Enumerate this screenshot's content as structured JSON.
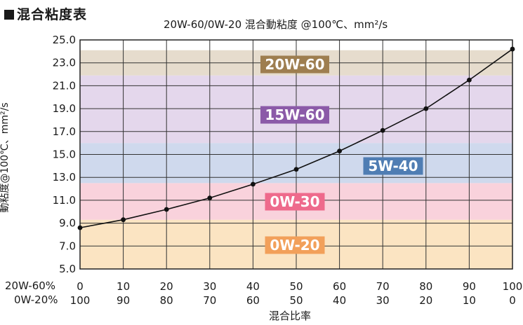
{
  "heading": "混合粘度表",
  "chart_data": {
    "type": "line",
    "title": "20W-60/0W-20 混合動粘度 @100℃、mm²/s",
    "ylabel": "動粘度@100℃、mm²/s",
    "xlabel": "混合比率",
    "ylim": [
      5.0,
      25.0
    ],
    "yticks": [
      "5.0",
      "7.0",
      "9.0",
      "11.0",
      "13.0",
      "15.0",
      "17.0",
      "19.0",
      "21.0",
      "23.0",
      "25.0"
    ],
    "grid": true,
    "x_rows": [
      {
        "label": "20W-60%",
        "ticks": [
          "0",
          "10",
          "20",
          "30",
          "40",
          "50",
          "60",
          "70",
          "80",
          "90",
          "100"
        ]
      },
      {
        "label": "0W-20%",
        "ticks": [
          "100",
          "90",
          "80",
          "70",
          "60",
          "50",
          "40",
          "30",
          "20",
          "10",
          "0"
        ]
      }
    ],
    "x": [
      0,
      10,
      20,
      30,
      40,
      50,
      60,
      70,
      80,
      90,
      100
    ],
    "y": [
      8.6,
      9.3,
      10.2,
      11.2,
      12.4,
      13.7,
      15.3,
      17.1,
      19.0,
      21.5,
      24.2
    ],
    "grade_bands": [
      {
        "name": "0W-20",
        "from": 5.0,
        "to": 9.3,
        "fill": "#fbe4c2",
        "label_color": "#f2a05a"
      },
      {
        "name": "0W-30",
        "from": 9.3,
        "to": 12.5,
        "fill": "#f9d2dc",
        "label_color": "#ee6a8c"
      },
      {
        "name": "5W-40",
        "from": 12.5,
        "to": 16.0,
        "fill": "#cfd9ed",
        "label_color": "#4f7db3"
      },
      {
        "name": "15W-60",
        "from": 16.0,
        "to": 21.9,
        "fill": "#e4d7ec",
        "label_color": "#8b5aa8"
      },
      {
        "name": "20W-60",
        "from": 21.9,
        "to": 24.1,
        "fill": "#e6dccd",
        "label_color": "#9e7e50"
      }
    ]
  }
}
